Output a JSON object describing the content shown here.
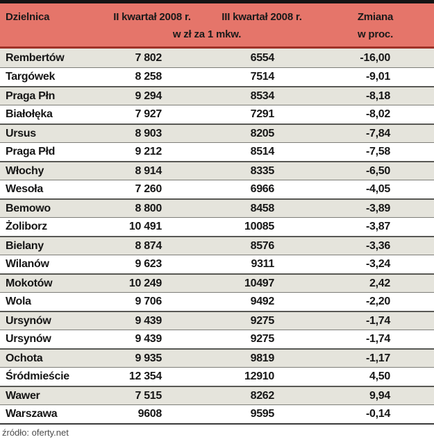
{
  "header": {
    "col_district": "Dzielnica",
    "col_q2": "II kwartał 2008 r.",
    "col_q3": "III kwartał 2008 r.",
    "col_change": "Zmiana",
    "sub_unit": "w zł za 1 mkw.",
    "sub_change": "w proc."
  },
  "footer": {
    "source": "źródło: oferty.net"
  },
  "colors": {
    "header_bg": "#e5756a",
    "header_underline": "#9e3228",
    "top_bar": "#141414",
    "row_alt_bg": "#e5e4dc",
    "row_bg": "#ffffff",
    "row_border": "#7d7d78",
    "text": "#161616",
    "source_text": "#4d4d4d"
  },
  "chart_data": {
    "type": "table",
    "title": "Ceny mieszkań w Warszawie — w zł za 1 mkw.",
    "columns": [
      "Dzielnica",
      "II kwartał 2008 r. (w zł za 1 mkw.)",
      "III kwartał 2008 r. (w zł za 1 mkw.)",
      "Zmiana w proc."
    ],
    "rows": [
      {
        "district": "Rembertów",
        "q2": "7 802",
        "q3": "6554",
        "change": "-16,00"
      },
      {
        "district": "Targówek",
        "q2": "8 258",
        "q3": "7514",
        "change": "-9,01"
      },
      {
        "district": "Praga Płn",
        "q2": "9 294",
        "q3": "8534",
        "change": "-8,18"
      },
      {
        "district": "Białołęka",
        "q2": "7 927",
        "q3": "7291",
        "change": "-8,02"
      },
      {
        "district": "Ursus",
        "q2": "8 903",
        "q3": "8205",
        "change": "-7,84"
      },
      {
        "district": "Praga Płd",
        "q2": "9 212",
        "q3": "8514",
        "change": "-7,58"
      },
      {
        "district": "Włochy",
        "q2": "8 914",
        "q3": "8335",
        "change": "-6,50"
      },
      {
        "district": "Wesoła",
        "q2": "7 260",
        "q3": "6966",
        "change": "-4,05"
      },
      {
        "district": "Bemowo",
        "q2": "8 800",
        "q3": "8458",
        "change": "-3,89"
      },
      {
        "district": "Żoliborz",
        "q2": "10 491",
        "q3": "10085",
        "change": "-3,87"
      },
      {
        "district": "Bielany",
        "q2": "8 874",
        "q3": "8576",
        "change": "-3,36"
      },
      {
        "district": "Wilanów",
        "q2": "9 623",
        "q3": "9311",
        "change": "-3,24"
      },
      {
        "district": "Mokotów",
        "q2": "10 249",
        "q3": "10497",
        "change": "2,42"
      },
      {
        "district": "Wola",
        "q2": "9 706",
        "q3": "9492",
        "change": "-2,20"
      },
      {
        "district": "Ursynów",
        "q2": "9 439",
        "q3": "9275",
        "change": "-1,74"
      },
      {
        "district": "Ursynów",
        "q2": "9 439",
        "q3": "9275",
        "change": "-1,74"
      },
      {
        "district": "Ochota",
        "q2": "9 935",
        "q3": "9819",
        "change": "-1,17"
      },
      {
        "district": "Śródmieście",
        "q2": "12 354",
        "q3": "12910",
        "change": "4,50"
      },
      {
        "district": "Wawer",
        "q2": "7 515",
        "q3": "8262",
        "change": "9,94"
      },
      {
        "district": "Warszawa",
        "q2": "9608",
        "q3": "9595",
        "change": "-0,14"
      }
    ]
  }
}
